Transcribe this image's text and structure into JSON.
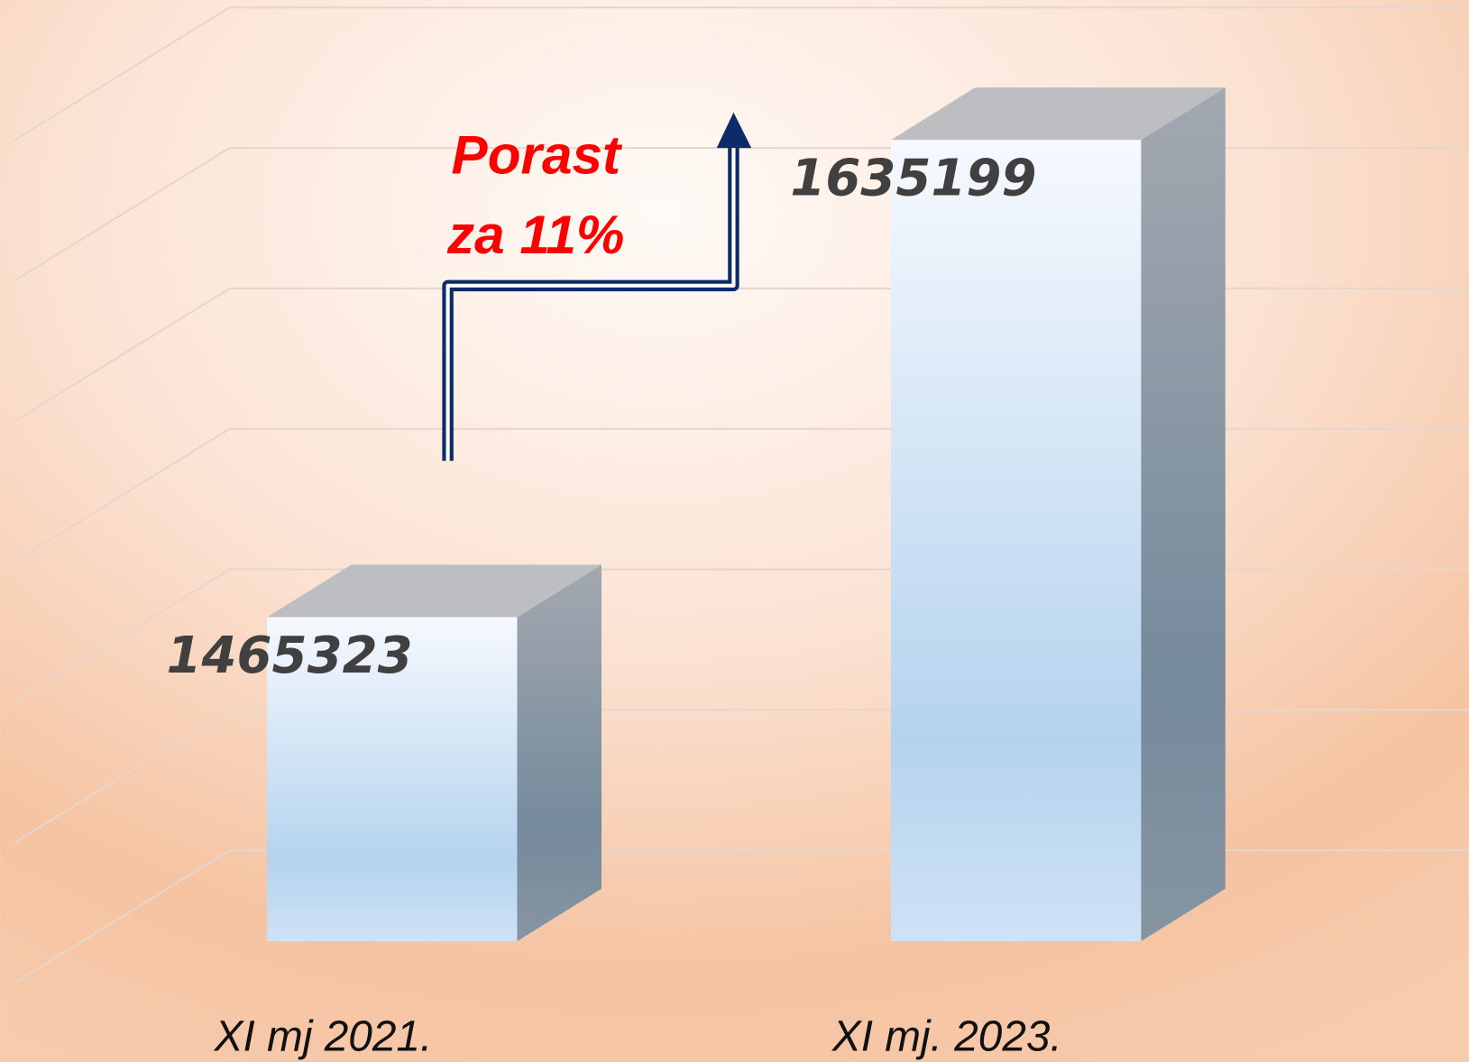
{
  "chart_data": {
    "type": "bar3d",
    "categories": [
      "XI mj 2021.",
      "XI mj. 2023."
    ],
    "values": [
      1465323,
      1635199
    ],
    "annotation": [
      "Porast",
      "za 11%"
    ],
    "ylim": [
      1350000,
      1700000
    ]
  }
}
